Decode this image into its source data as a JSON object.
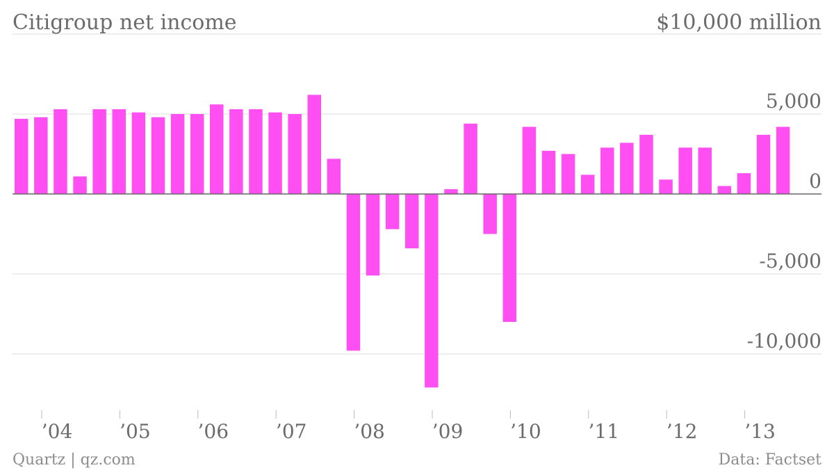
{
  "chart_data": {
    "type": "bar",
    "title": "Citigroup net income",
    "unit_label": "$10,000 million",
    "y_ticks": [
      {
        "value": 5000,
        "label": "5,000"
      },
      {
        "value": 0,
        "label": "0"
      },
      {
        "value": -5000,
        "label": "-5,000"
      },
      {
        "value": -10000,
        "label": "-10,000"
      }
    ],
    "top_gridline_value": 10000,
    "ylim": [
      -13800,
      10000
    ],
    "x_ticks": [
      {
        "period": 0,
        "label": "’04"
      },
      {
        "period": 4,
        "label": "’05"
      },
      {
        "period": 8,
        "label": "’06"
      },
      {
        "period": 12,
        "label": "’07"
      },
      {
        "period": 16,
        "label": "’08"
      },
      {
        "period": 20,
        "label": "’09"
      },
      {
        "period": 24,
        "label": "’10"
      },
      {
        "period": 28,
        "label": "’11"
      },
      {
        "period": 32,
        "label": "’12"
      },
      {
        "period": 36,
        "label": "’13"
      }
    ],
    "values": [
      4700,
      4800,
      5300,
      1100,
      5300,
      5300,
      5100,
      4800,
      5000,
      5000,
      5600,
      5300,
      5300,
      5100,
      5000,
      6200,
      2200,
      -9800,
      -5100,
      -2200,
      -3400,
      -12100,
      300,
      4400,
      -2500,
      -8000,
      4200,
      2700,
      2500,
      1200,
      2900,
      3200,
      3700,
      900,
      2900,
      2900,
      500,
      1300,
      3700,
      4200
    ],
    "color": "#ff4ff2",
    "grid": true
  },
  "footer": {
    "left": "Quartz | qz.com",
    "right": "Data: Factset"
  }
}
